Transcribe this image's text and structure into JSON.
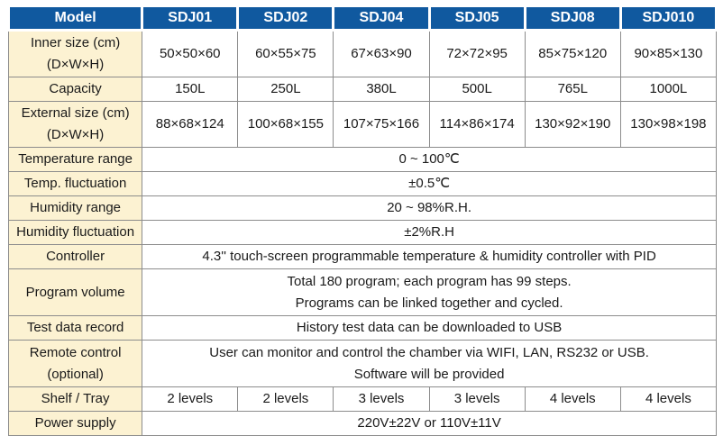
{
  "colors": {
    "header_bg": "#10599F",
    "header_text": "#FFFFFF",
    "label_bg": "#FCF2D2",
    "border": "#8C8C8C"
  },
  "table": {
    "header": [
      "Model",
      "SDJ01",
      "SDJ02",
      "SDJ04",
      "SDJ05",
      "SDJ08",
      "SDJ010"
    ],
    "rows": [
      {
        "label": "Inner size (cm)",
        "label2": "(D×W×H)",
        "values": [
          "50×50×60",
          "60×55×75",
          "67×63×90",
          "72×72×95",
          "85×75×120",
          "90×85×130"
        ]
      },
      {
        "label": "Capacity",
        "values": [
          "150L",
          "250L",
          "380L",
          "500L",
          "765L",
          "1000L"
        ]
      },
      {
        "label": "External size (cm)",
        "label2": "(D×W×H)",
        "values": [
          "88×68×124",
          "100×68×155",
          "107×75×166",
          "114×86×174",
          "130×92×190",
          "130×98×198"
        ]
      },
      {
        "label": "Temperature range",
        "value": "0 ~ 100℃"
      },
      {
        "label": "Temp. fluctuation",
        "value": "±0.5℃"
      },
      {
        "label": "Humidity range",
        "value": "20 ~ 98%R.H."
      },
      {
        "label": "Humidity fluctuation",
        "value": "±2%R.H"
      },
      {
        "label": "Controller",
        "value": "4.3'' touch-screen programmable temperature & humidity controller with PID"
      },
      {
        "label": "Program volume",
        "value": "Total 180 program; each program has 99 steps.",
        "value2": "Programs can be linked together and cycled."
      },
      {
        "label": "Test data record",
        "value": "History test data can be downloaded to USB"
      },
      {
        "label": "Remote control",
        "label2": "(optional)",
        "value": "User can monitor and control the chamber via WIFI, LAN, RS232 or USB.",
        "value2": "Software will be provided"
      },
      {
        "label": "Shelf / Tray",
        "values": [
          "2 levels",
          "2 levels",
          "3 levels",
          "3 levels",
          "4 levels",
          "4 levels"
        ]
      },
      {
        "label": "Power supply",
        "value": "220V±22V or 110V±11V"
      }
    ]
  }
}
